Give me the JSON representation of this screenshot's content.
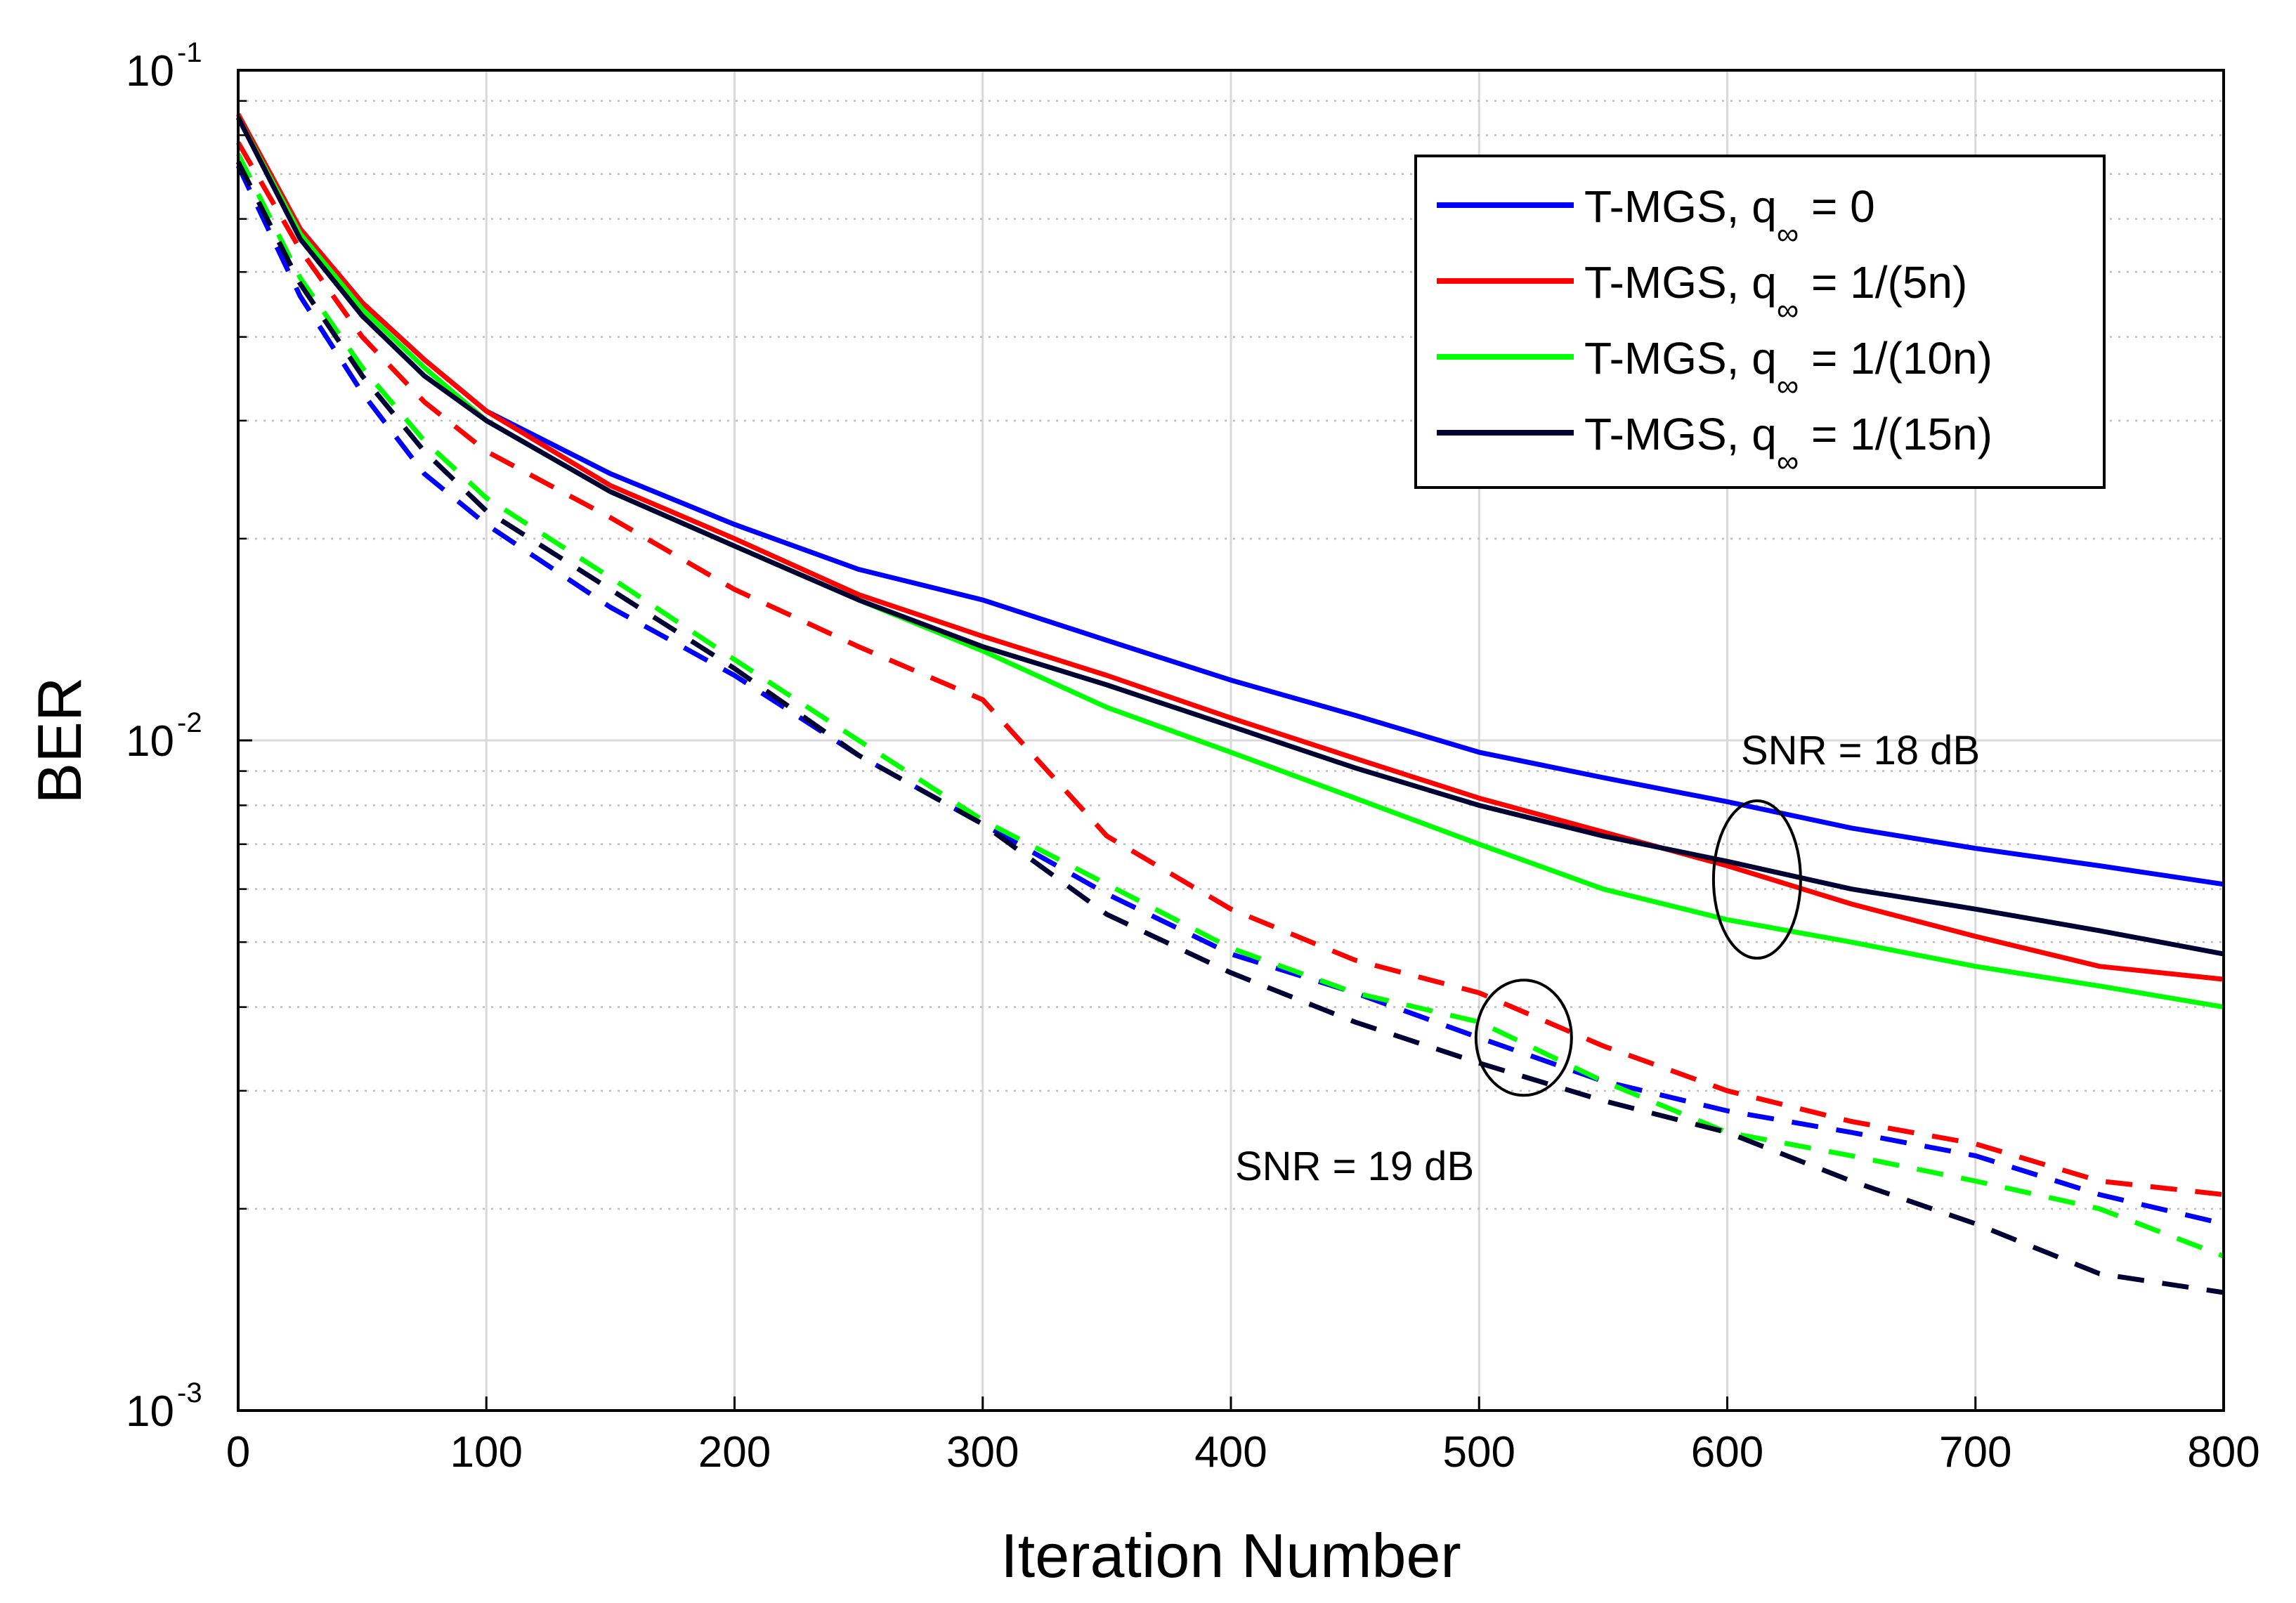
{
  "chart_data": {
    "type": "line",
    "title": "",
    "xlabel": "Iteration Number",
    "ylabel": "BER",
    "xlim": [
      0,
      800
    ],
    "ylim": [
      0.001,
      0.1
    ],
    "yscale": "log",
    "grid": true,
    "legend_position": "top-right",
    "x_ticks": [
      0,
      100,
      200,
      300,
      400,
      500,
      600,
      700,
      800
    ],
    "y_ticks": [
      {
        "value": 0.1,
        "base": "10",
        "exp": "-1"
      },
      {
        "value": 0.01,
        "base": "10",
        "exp": "-2"
      },
      {
        "value": 0.001,
        "base": "10",
        "exp": "-3"
      }
    ],
    "x": [
      0,
      25,
      50,
      75,
      100,
      150,
      200,
      250,
      300,
      350,
      400,
      450,
      500,
      550,
      600,
      650,
      700,
      750,
      800
    ],
    "series": [
      {
        "name": "T-MGS, q∞ = 0",
        "label_main": "T-MGS, q",
        "label_sub": "∞",
        "label_tail": " = 0",
        "color": "#0000ff",
        "style": "solid",
        "snr": "18 dB",
        "in_legend": true,
        "values": [
          0.085,
          0.058,
          0.045,
          0.037,
          0.031,
          0.025,
          0.021,
          0.018,
          0.0162,
          0.0141,
          0.0123,
          0.0109,
          0.0096,
          0.0088,
          0.0081,
          0.0074,
          0.0069,
          0.0065,
          0.0061
        ]
      },
      {
        "name": "T-MGS, q∞ = 1/(5n)",
        "label_main": "T-MGS, q",
        "label_sub": "∞",
        "label_tail": " = 1/(5n)",
        "color": "#ff0000",
        "style": "solid",
        "snr": "18 dB",
        "in_legend": true,
        "values": [
          0.086,
          0.058,
          0.045,
          0.037,
          0.031,
          0.024,
          0.02,
          0.0165,
          0.0143,
          0.0125,
          0.0108,
          0.0094,
          0.0082,
          0.0073,
          0.0065,
          0.0057,
          0.0051,
          0.0046,
          0.0044
        ]
      },
      {
        "name": "T-MGS, q∞ = 1/(10n)",
        "label_main": "T-MGS, q",
        "label_sub": "∞",
        "label_tail": " = 1/(10n)",
        "color": "#00ff00",
        "style": "solid",
        "snr": "18 dB",
        "in_legend": true,
        "values": [
          0.085,
          0.057,
          0.044,
          0.036,
          0.03,
          0.0235,
          0.0195,
          0.0162,
          0.0136,
          0.0112,
          0.0096,
          0.0082,
          0.007,
          0.006,
          0.0054,
          0.005,
          0.0046,
          0.0043,
          0.004
        ]
      },
      {
        "name": "T-MGS, q∞ = 1/(15n)",
        "label_main": "T-MGS, q",
        "label_sub": "∞",
        "label_tail": " = 1/(15n)",
        "color": "#000033",
        "style": "solid",
        "snr": "18 dB",
        "in_legend": true,
        "values": [
          0.085,
          0.056,
          0.043,
          0.035,
          0.03,
          0.0235,
          0.0195,
          0.0162,
          0.0138,
          0.0121,
          0.0105,
          0.0091,
          0.008,
          0.0072,
          0.0066,
          0.006,
          0.0056,
          0.0052,
          0.0048
        ]
      },
      {
        "name": "T-MGS, q∞ = 0 (SNR = 19 dB)",
        "color": "#0000ff",
        "style": "dashed",
        "snr": "19 dB",
        "in_legend": false,
        "values": [
          0.072,
          0.046,
          0.033,
          0.025,
          0.021,
          0.0158,
          0.0125,
          0.0095,
          0.0075,
          0.0059,
          0.0048,
          0.0042,
          0.0036,
          0.0031,
          0.0028,
          0.0026,
          0.0024,
          0.0021,
          0.0019
        ]
      },
      {
        "name": "T-MGS, q∞ = 1/(5n) (SNR = 19 dB)",
        "color": "#ff0000",
        "style": "dashed",
        "snr": "19 dB",
        "in_legend": false,
        "values": [
          0.078,
          0.054,
          0.04,
          0.032,
          0.027,
          0.0215,
          0.0168,
          0.0138,
          0.0115,
          0.0072,
          0.0056,
          0.0047,
          0.0042,
          0.0035,
          0.003,
          0.0027,
          0.0025,
          0.0022,
          0.0021
        ]
      },
      {
        "name": "T-MGS, q∞ = 1/(10n) (SNR = 19 dB)",
        "color": "#00ff00",
        "style": "dashed",
        "snr": "19 dB",
        "in_legend": false,
        "values": [
          0.075,
          0.049,
          0.036,
          0.028,
          0.023,
          0.0175,
          0.0132,
          0.01,
          0.0076,
          0.0061,
          0.0049,
          0.0042,
          0.0038,
          0.0031,
          0.0026,
          0.0024,
          0.0022,
          0.002,
          0.0017
        ]
      },
      {
        "name": "T-MGS, q∞ = 1/(15n) (SNR = 19 dB)",
        "color": "#000033",
        "style": "dashed",
        "snr": "19 dB",
        "in_legend": false,
        "values": [
          0.073,
          0.048,
          0.035,
          0.027,
          0.022,
          0.0168,
          0.0128,
          0.0095,
          0.0075,
          0.0055,
          0.0045,
          0.0038,
          0.0033,
          0.0029,
          0.0026,
          0.0022,
          0.0019,
          0.0016,
          0.0015
        ]
      }
    ],
    "annotations": [
      {
        "text": "SNR = 18 dB",
        "ellipse_center": [
          612,
          0.0062
        ]
      },
      {
        "text": "SNR = 19 dB",
        "ellipse_center": [
          518,
          0.0036
        ]
      }
    ]
  }
}
